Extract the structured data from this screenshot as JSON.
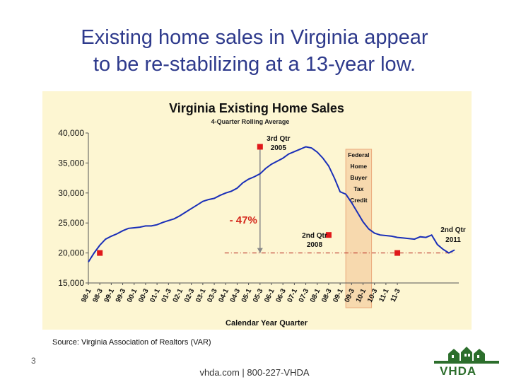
{
  "slide": {
    "title_line1": "Existing home sales in Virginia appear",
    "title_line2": "to be re-stabilizing at a 13-year low.",
    "source": "Source:  Virginia Association of Realtors (VAR)",
    "page_number": "3",
    "footer": "vhda.com | 800-227-VHDA",
    "logo_text": "VHDA"
  },
  "colors": {
    "line": "#1a2fb8",
    "marker": "#e0191b",
    "plot_bg": "#fdf6d2",
    "band": "#f6d4a8",
    "band_border": "#e8a070",
    "annotation_red": "#d4261b"
  },
  "chart_data": {
    "type": "line",
    "title": "Virginia Existing Home Sales",
    "subtitle": "4-Quarter Rolling Average",
    "xlabel": "Calendar Year Quarter",
    "ylabel": "",
    "ylim": [
      15000,
      40000
    ],
    "y_ticks": [
      "15,000",
      "20,000",
      "25,000",
      "30,000",
      "35,000",
      "40,000"
    ],
    "y_tick_values": [
      15000,
      20000,
      25000,
      30000,
      35000,
      40000
    ],
    "x_tick_labels": [
      "98-1",
      "98-3",
      "99-1",
      "99-3",
      "00-1",
      "00-3",
      "01-1",
      "01-3",
      "02-1",
      "02-3",
      "03-1",
      "03-3",
      "04-1",
      "04-3",
      "05-1",
      "05-3",
      "06-1",
      "06-3",
      "07-1",
      "07-3",
      "08-1",
      "08-3",
      "09-1",
      "09-3",
      "10-1",
      "10-3",
      "11-1",
      "11-3"
    ],
    "grid": false,
    "series": [
      {
        "values": [
          18500,
          20000,
          21300,
          22300,
          22800,
          23200,
          23700,
          24100,
          24200,
          24300,
          24500,
          24500,
          24700,
          25100,
          25400,
          25700,
          26200,
          26800,
          27400,
          28000,
          28600,
          28900,
          29100,
          29600,
          30000,
          30300,
          30800,
          31700,
          32300,
          32700,
          33200,
          34100,
          34800,
          35300,
          35800,
          36500,
          36900,
          37300,
          37700,
          37500,
          36800,
          35800,
          34500,
          32500,
          30200,
          29800,
          28400,
          26800,
          25200,
          24000,
          23300,
          23000,
          22900,
          22800,
          22600,
          22500,
          22400,
          22300,
          22700,
          22600,
          23000,
          21400,
          20600,
          20000,
          20500
        ]
      }
    ],
    "highlighted_points": [
      {
        "x": "98-3",
        "value": 20000
      },
      {
        "x": "05-3",
        "value": 37700
      },
      {
        "x": "08-3",
        "value": 23000
      },
      {
        "x": "11-3",
        "value": 20000
      }
    ],
    "annotations": {
      "peak_line1": "3rd Qtr",
      "peak_line2": "2005",
      "trough_line1": "2nd Qtr",
      "trough_line2": "2008",
      "end_line1": "2nd Qtr",
      "end_line2": "2011",
      "drop": "- 47%",
      "band_label": [
        "Federal",
        "Home",
        "Buyer",
        "Tax",
        "Credit"
      ]
    }
  }
}
